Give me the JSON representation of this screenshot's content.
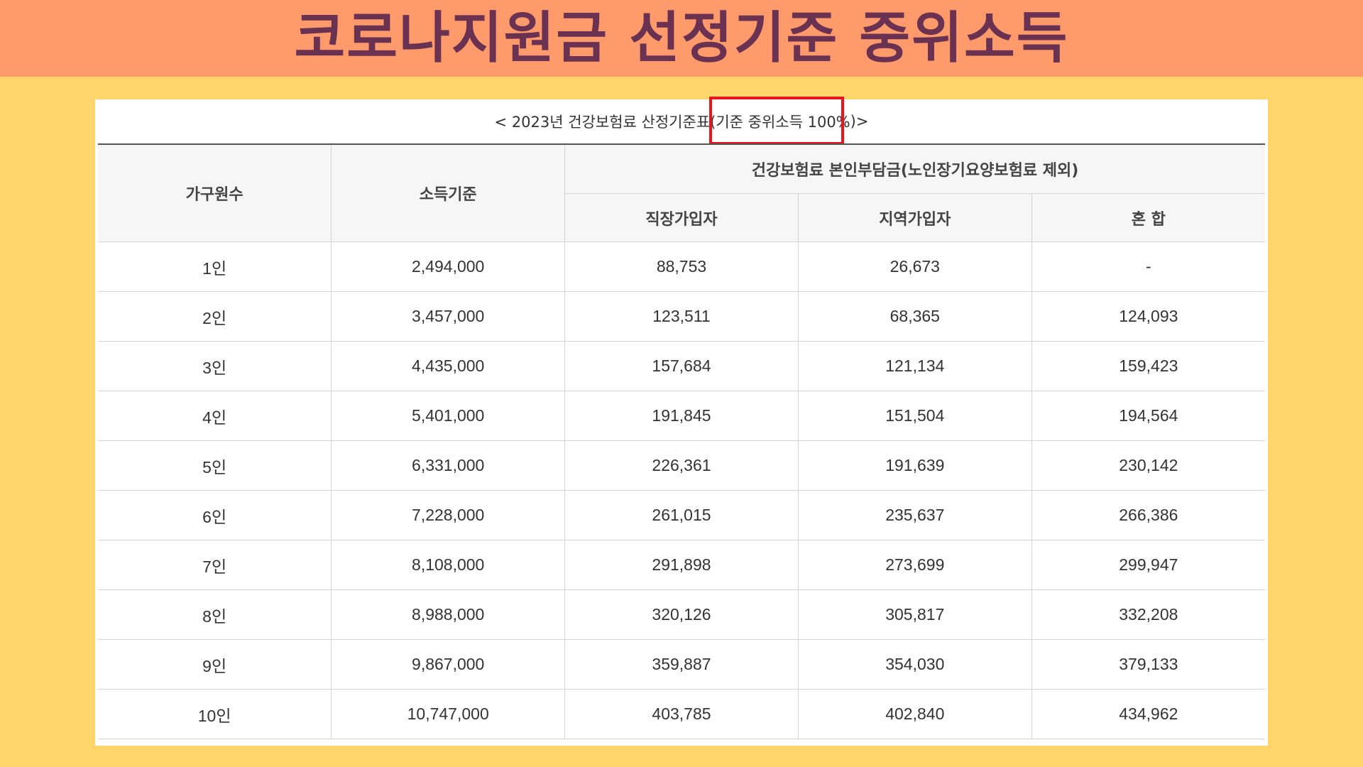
{
  "banner": {
    "title": "코로나지원금 선정기준 중위소득"
  },
  "caption": {
    "prefix": "< 2023년 건강보험료 산정기준표(",
    "highlight": "기준 중위소득 100%",
    "suffix": ")>"
  },
  "table": {
    "headers": {
      "household": "가구원수",
      "income": "소득기준",
      "premium_group": "건강보험료 본인부담금(노인장기요양보험료 제외)",
      "employee": "직장가입자",
      "regional": "지역가입자",
      "mixed": "혼 합"
    },
    "rows": [
      [
        "1인",
        "2,494,000",
        "88,753",
        "26,673",
        "-"
      ],
      [
        "2인",
        "3,457,000",
        "123,511",
        "68,365",
        "124,093"
      ],
      [
        "3인",
        "4,435,000",
        "157,684",
        "121,134",
        "159,423"
      ],
      [
        "4인",
        "5,401,000",
        "191,845",
        "151,504",
        "194,564"
      ],
      [
        "5인",
        "6,331,000",
        "226,361",
        "191,639",
        "230,142"
      ],
      [
        "6인",
        "7,228,000",
        "261,015",
        "235,637",
        "266,386"
      ],
      [
        "7인",
        "8,108,000",
        "291,898",
        "273,699",
        "299,947"
      ],
      [
        "8인",
        "8,988,000",
        "320,126",
        "305,817",
        "332,208"
      ],
      [
        "9인",
        "9,867,000",
        "359,887",
        "354,030",
        "379,133"
      ],
      [
        "10인",
        "10,747,000",
        "403,785",
        "402,840",
        "434,962"
      ]
    ]
  },
  "colors": {
    "background": "#FFD56B",
    "banner": "#FF9A6C",
    "banner_text": "#6B3150",
    "highlight_border": "#E8161C"
  }
}
